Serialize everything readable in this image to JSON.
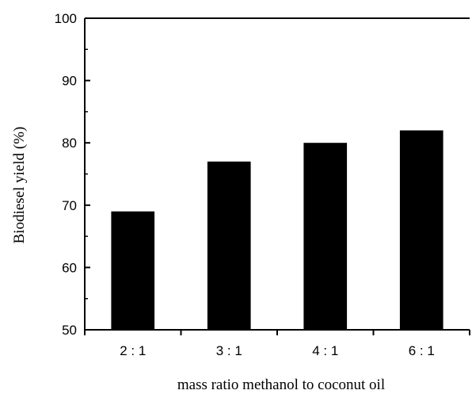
{
  "chart_data": {
    "type": "bar",
    "title": "",
    "xlabel": "mass ratio methanol to coconut oil",
    "ylabel": "Biodiesel yield (%)",
    "categories": [
      "2 : 1",
      "3 : 1",
      "4 : 1",
      "6 : 1"
    ],
    "values": [
      69,
      77,
      80,
      82
    ],
    "ylim": [
      50,
      100
    ],
    "yticks": [
      50,
      60,
      70,
      80,
      90,
      100
    ],
    "ytick_labels": [
      "50",
      "60",
      "70",
      "80",
      "90",
      "100"
    ],
    "grid": false,
    "legend": "none",
    "bar_color": "#000000"
  }
}
